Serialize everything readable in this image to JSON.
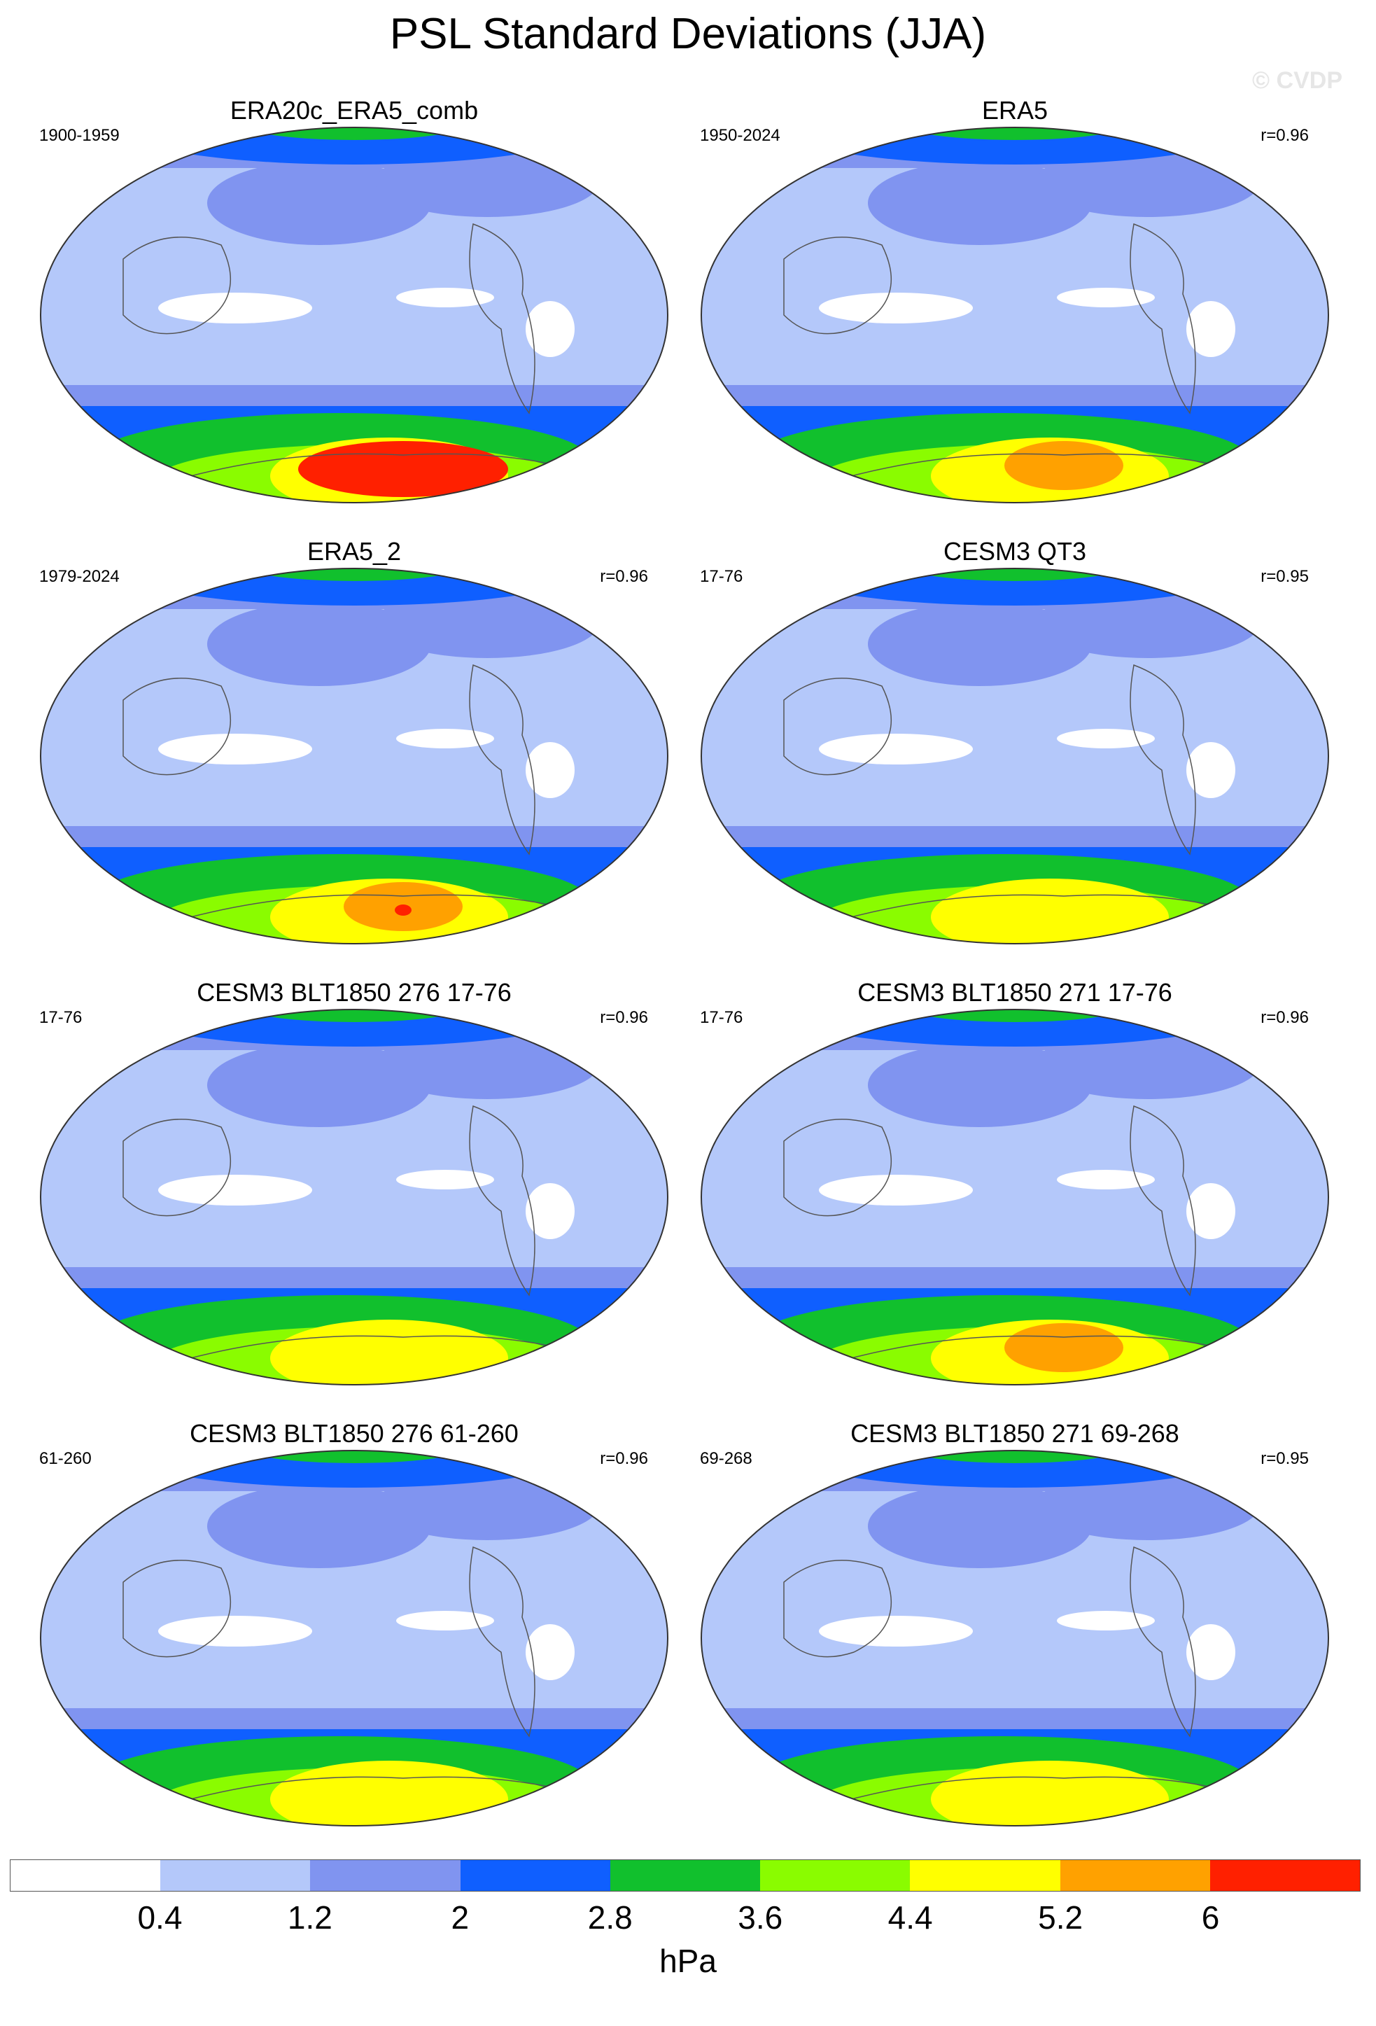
{
  "title": "PSL Standard Deviations (JJA)",
  "copyright": "© CVDP",
  "colorbar": {
    "units": "hPa",
    "colors": [
      "#ffffff",
      "#b4c8fa",
      "#8094f0",
      "#0f5fff",
      "#11c02d",
      "#8afc00",
      "#ffff00",
      "#ffa100",
      "#ff2000"
    ],
    "labels": [
      "0.4",
      "1.2",
      "2",
      "2.8",
      "3.6",
      "4.4",
      "5.2",
      "6"
    ]
  },
  "panels": [
    {
      "name": "ERA20c_ERA5_comb",
      "years": "1900-1959",
      "corr": "",
      "south_peak_level": 8,
      "south_max_level": 8
    },
    {
      "name": "ERA5",
      "years": "1950-2024",
      "corr": "r=0.96",
      "south_peak_level": 7,
      "south_max_level": 7
    },
    {
      "name": "ERA5_2",
      "years": "1979-2024",
      "corr": "r=0.96",
      "south_peak_level": 7,
      "south_max_level": 8
    },
    {
      "name": "CESM3 QT3",
      "years": "17-76",
      "corr": "r=0.95",
      "south_peak_level": 6,
      "south_max_level": 6
    },
    {
      "name": "CESM3 BLT1850 276 17-76",
      "years": "17-76",
      "corr": "r=0.96",
      "south_peak_level": 6,
      "south_max_level": 7
    },
    {
      "name": "CESM3 BLT1850 271 17-76",
      "years": "17-76",
      "corr": "r=0.96",
      "south_peak_level": 7,
      "south_max_level": 7
    },
    {
      "name": "CESM3 BLT1850 276 61-260",
      "years": "61-260",
      "corr": "r=0.96",
      "south_peak_level": 6,
      "south_max_level": 7
    },
    {
      "name": "CESM3 BLT1850 271 69-268",
      "years": "69-268",
      "corr": "r=0.95",
      "south_peak_level": 6,
      "south_max_level": 7
    }
  ]
}
